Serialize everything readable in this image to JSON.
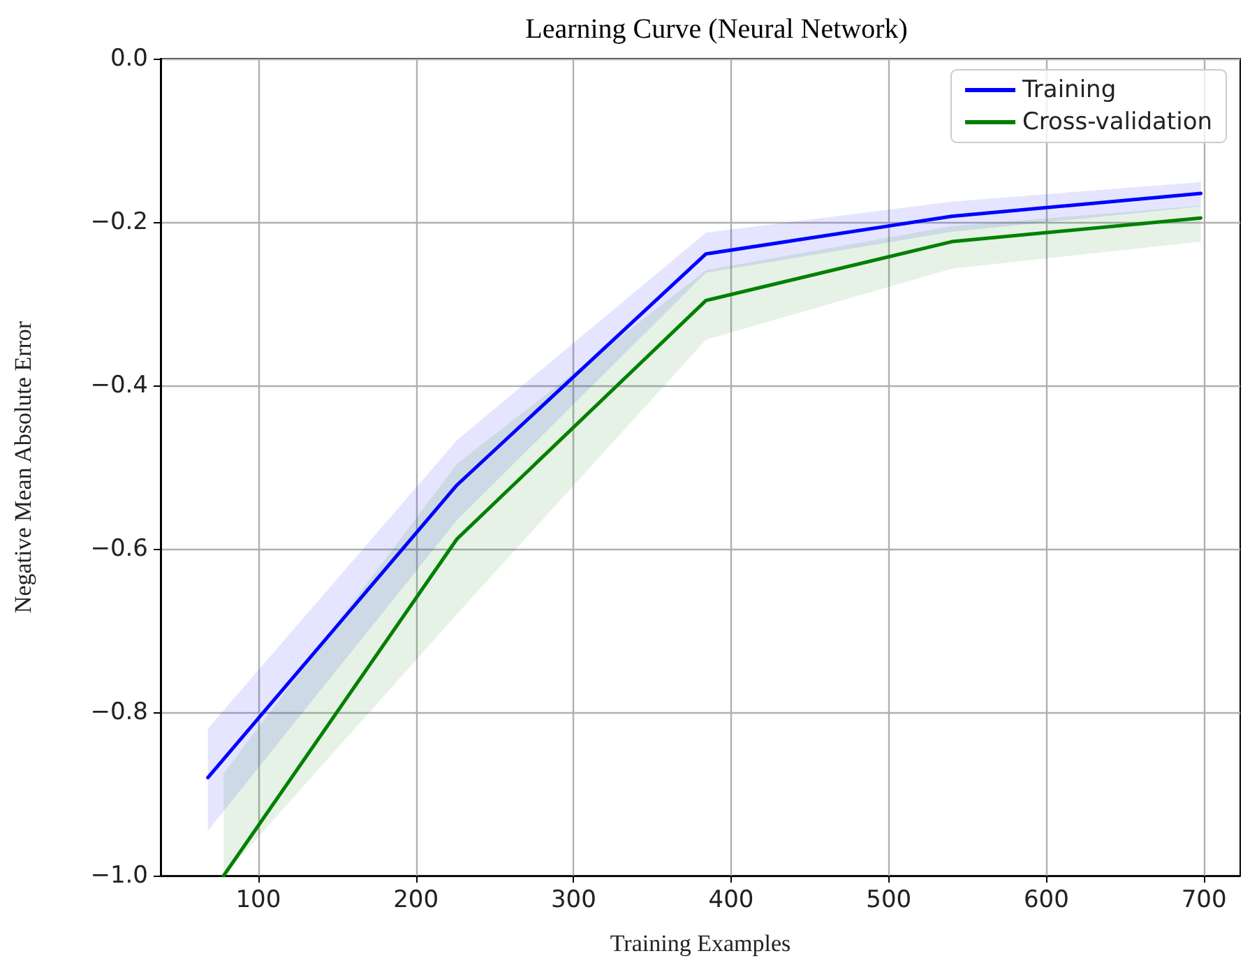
{
  "chart_data": {
    "type": "line",
    "title": "Learning Curve (Neural Network)",
    "xlabel": "Training Examples",
    "ylabel": "Negative Mean Absolute Error",
    "xlim": [
      38,
      723
    ],
    "xticks": [
      100,
      200,
      300,
      400,
      500,
      600,
      700
    ],
    "ylim": [
      -1.0,
      0.0
    ],
    "yticks": [
      {
        "value": -1.0,
        "label": "−1.0"
      },
      {
        "value": -0.8,
        "label": "−0.8"
      },
      {
        "value": -0.6,
        "label": "−0.6"
      },
      {
        "value": -0.4,
        "label": "−0.4"
      },
      {
        "value": -0.2,
        "label": "−0.2"
      },
      {
        "value": 0.0,
        "label": "0.0"
      }
    ],
    "grid": true,
    "legend": "top right",
    "marker": "none",
    "line_style": "solid",
    "series": [
      {
        "name": "Training",
        "color": "#0000ff",
        "x": [
          68,
          226,
          384,
          540,
          698
        ],
        "values": [
          -0.88,
          -0.522,
          -0.239,
          -0.193,
          -0.165
        ],
        "lower": [
          -0.945,
          -0.565,
          -0.262,
          -0.212,
          -0.181
        ],
        "upper": [
          -0.82,
          -0.467,
          -0.213,
          -0.175,
          -0.151
        ]
      },
      {
        "name": "Cross-validation",
        "color": "#008000",
        "x": [
          78,
          226,
          384,
          540,
          698
        ],
        "values": [
          -1.0,
          -0.588,
          -0.296,
          -0.224,
          -0.195
        ],
        "lower": [
          -1.0,
          -0.68,
          -0.344,
          -0.257,
          -0.224
        ],
        "upper": [
          -0.875,
          -0.496,
          -0.259,
          -0.205,
          -0.18
        ]
      }
    ]
  }
}
